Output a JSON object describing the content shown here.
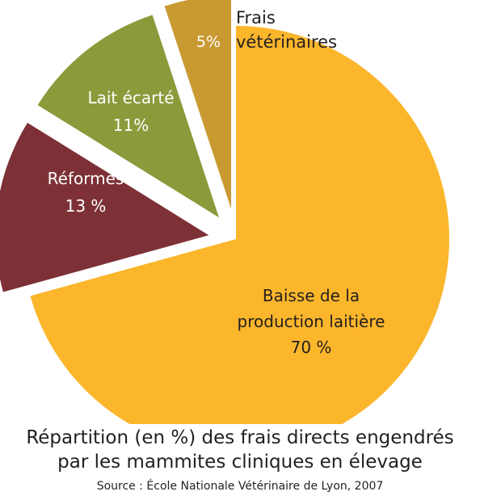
{
  "chart_data": {
    "type": "pie",
    "exploded": true,
    "slices": [
      {
        "label_lines": [
          "Baisse de la",
          "production laitière"
        ],
        "value_label": "70 %",
        "value": 70,
        "color": "#fbb62b",
        "label_color": "#231f20"
      },
      {
        "label_lines": [
          "Réformes"
        ],
        "value_label": "13 %",
        "value": 13,
        "color": "#7d3136",
        "label_color": "#ffffff"
      },
      {
        "label_lines": [
          "Lait écarté"
        ],
        "value_label": "11%",
        "value": 11,
        "color": "#8b9a3a",
        "label_color": "#ffffff"
      },
      {
        "label_lines": [
          "Frais",
          "vétérinaires"
        ],
        "value_label": "5%",
        "value": 5,
        "color": "#c99a32",
        "label_color": "#ffffff",
        "name_color": "#231f20"
      }
    ],
    "caption_lines": [
      "Répartition (en %) des frais directs engendrés",
      "par les mammites cliniques en élevage"
    ],
    "source": "Source : École Nationale Vétérinaire de Lyon, 2007"
  }
}
